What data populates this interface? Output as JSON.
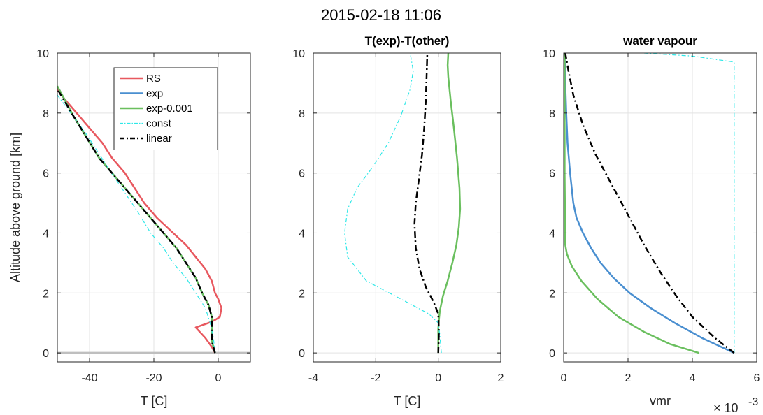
{
  "figure": {
    "suptitle": "2015-02-18 11:06"
  },
  "chart_data": [
    {
      "type": "line",
      "title": "",
      "xlabel": "T [C]",
      "ylabel": "Altitude above ground [km]",
      "xlim": [
        -50,
        10
      ],
      "ylim": [
        -0.3,
        10
      ],
      "xticks": [
        -40,
        -20,
        0
      ],
      "yticks": [
        0,
        2,
        4,
        6,
        8,
        10
      ],
      "grid": true,
      "legend_position": "top-right",
      "reference_line": {
        "y": 0,
        "color": "#bfbfbf"
      },
      "series": [
        {
          "name": "RS",
          "color": "#e8585f",
          "dash": "solid",
          "width": 2.5,
          "x": [
            -1,
            -2,
            -4,
            -7,
            -3,
            -1,
            0.5,
            1,
            0,
            -1,
            -2,
            -4,
            -7,
            -10,
            -14,
            -19,
            -23,
            -26,
            -29,
            -33,
            -36,
            -40,
            -44,
            -48,
            -50
          ],
          "y": [
            0,
            0.2,
            0.5,
            0.85,
            1,
            1.1,
            1.2,
            1.5,
            1.8,
            2.0,
            2.4,
            2.8,
            3.2,
            3.6,
            4.0,
            4.5,
            5.0,
            5.5,
            6.0,
            6.5,
            7.0,
            7.5,
            8.0,
            8.5,
            8.8
          ]
        },
        {
          "name": "exp",
          "color": "#4a8fd0",
          "dash": "solid",
          "width": 2.5,
          "x": [
            -1,
            -2,
            -2,
            -2,
            -3,
            -5,
            -7,
            -10,
            -13,
            -17,
            -21,
            -25,
            -29,
            -33,
            -37,
            -41,
            -45,
            -49.5
          ],
          "y": [
            0,
            0.4,
            0.8,
            1.2,
            1.6,
            2.0,
            2.5,
            3.0,
            3.5,
            4.0,
            4.5,
            5.0,
            5.5,
            6.0,
            6.5,
            7.2,
            7.9,
            8.8
          ]
        },
        {
          "name": "exp-0.001",
          "color": "#6abf5e",
          "dash": "solid",
          "width": 2.5,
          "x": [
            -1,
            -2,
            -2,
            -2,
            -3,
            -5,
            -7,
            -10,
            -13,
            -17,
            -21,
            -25,
            -29,
            -33,
            -37,
            -41,
            -45,
            -50
          ],
          "y": [
            0,
            0.4,
            0.8,
            1.2,
            1.6,
            2.0,
            2.5,
            3.0,
            3.5,
            4.0,
            4.5,
            5.0,
            5.5,
            6.0,
            6.5,
            7.2,
            7.9,
            8.9
          ]
        },
        {
          "name": "const",
          "color": "#2ee8e8",
          "dash": "dashdot",
          "width": 1.2,
          "x": [
            -1,
            -1.5,
            -2.5,
            -4,
            -7,
            -10,
            -14,
            -17,
            -21,
            -25,
            -30,
            -35,
            -41,
            -50
          ],
          "y": [
            0,
            0.5,
            1.0,
            1.5,
            2.0,
            2.5,
            3.0,
            3.5,
            4.0,
            4.7,
            5.5,
            6.3,
            7.3,
            8.6
          ]
        },
        {
          "name": "linear",
          "color": "#000000",
          "dash": "dashdot",
          "width": 2.5,
          "x": [
            -1,
            -2,
            -2,
            -2,
            -3,
            -5,
            -7,
            -10,
            -13,
            -17,
            -21,
            -25,
            -29,
            -33,
            -37,
            -41,
            -45,
            -50
          ],
          "y": [
            0,
            0.4,
            0.8,
            1.2,
            1.6,
            2.0,
            2.5,
            3.0,
            3.5,
            4.0,
            4.5,
            5.0,
            5.5,
            6.0,
            6.5,
            7.2,
            7.9,
            8.8
          ]
        }
      ]
    },
    {
      "type": "line",
      "title": "T(exp)-T(other)",
      "xlabel": "T [C]",
      "ylabel": "",
      "xlim": [
        -4,
        2
      ],
      "ylim": [
        -0.3,
        10
      ],
      "xticks": [
        -4,
        -2,
        0,
        2
      ],
      "yticks": [
        0,
        2,
        4,
        6,
        8,
        10
      ],
      "grid": true,
      "series": [
        {
          "name": "exp-0.001",
          "color": "#6abf5e",
          "dash": "solid",
          "width": 2.5,
          "x": [
            0,
            0,
            0.02,
            0.05,
            0.15,
            0.3,
            0.45,
            0.58,
            0.66,
            0.7,
            0.68,
            0.6,
            0.5,
            0.4,
            0.32,
            0.3,
            0.32
          ],
          "y": [
            0,
            0.8,
            1.1,
            1.4,
            1.9,
            2.4,
            3.0,
            3.6,
            4.2,
            4.8,
            5.5,
            6.5,
            7.5,
            8.4,
            9.2,
            9.6,
            10
          ]
        },
        {
          "name": "const",
          "color": "#2ee8e8",
          "dash": "dashdot",
          "width": 1.2,
          "x": [
            0.1,
            0.05,
            0,
            -0.3,
            -1.2,
            -2.3,
            -2.9,
            -3.0,
            -2.9,
            -2.6,
            -2.1,
            -1.6,
            -1.2,
            -0.9,
            -0.8,
            -0.9
          ],
          "y": [
            0,
            0.6,
            1.0,
            1.3,
            1.8,
            2.4,
            3.2,
            4.0,
            4.8,
            5.5,
            6.2,
            7.0,
            7.9,
            8.8,
            9.4,
            10
          ]
        },
        {
          "name": "linear",
          "color": "#000000",
          "dash": "dashdot",
          "width": 2.5,
          "x": [
            0,
            0.02,
            0,
            -0.15,
            -0.4,
            -0.6,
            -0.72,
            -0.76,
            -0.72,
            -0.62,
            -0.52,
            -0.45,
            -0.4,
            -0.37,
            -0.35
          ],
          "y": [
            0,
            0.7,
            1.3,
            1.7,
            2.2,
            2.8,
            3.5,
            4.3,
            5.0,
            5.8,
            6.6,
            7.5,
            8.4,
            9.3,
            10
          ]
        }
      ]
    },
    {
      "type": "line",
      "title": "water vapour",
      "xlabel": "vmr",
      "ylabel": "",
      "x_exponent_label": "× 10",
      "x_exponent": "-3",
      "xlim": [
        0,
        6
      ],
      "ylim": [
        -0.3,
        10
      ],
      "xticks": [
        0,
        2,
        4,
        6
      ],
      "yticks": [
        0,
        2,
        4,
        6,
        8,
        10
      ],
      "grid": true,
      "series": [
        {
          "name": "exp",
          "color": "#4a8fd0",
          "dash": "solid",
          "width": 2.5,
          "x": [
            5.3,
            4.3,
            3.45,
            2.7,
            2.05,
            1.55,
            1.15,
            0.85,
            0.6,
            0.4,
            0.3,
            0.2,
            0.12,
            0.08,
            0.05,
            0.03
          ],
          "y": [
            0,
            0.5,
            1.0,
            1.5,
            2.0,
            2.5,
            3.0,
            3.5,
            4.0,
            4.5,
            5.0,
            6.0,
            7.0,
            8.0,
            9.0,
            10
          ]
        },
        {
          "name": "exp-0.001",
          "color": "#6abf5e",
          "dash": "solid",
          "width": 2.5,
          "x": [
            4.2,
            3.3,
            2.5,
            1.7,
            1.05,
            0.55,
            0.25,
            0.1,
            0.05,
            0.03,
            0.03
          ],
          "y": [
            0,
            0.3,
            0.7,
            1.2,
            1.8,
            2.4,
            2.9,
            3.3,
            3.6,
            6.0,
            10
          ]
        },
        {
          "name": "const",
          "color": "#2ee8e8",
          "dash": "dashdot",
          "width": 1.2,
          "x": [
            5.3,
            5.3,
            5.3,
            4.0,
            2.5
          ],
          "y": [
            0,
            5,
            9.7,
            9.9,
            10
          ]
        },
        {
          "name": "linear",
          "color": "#000000",
          "dash": "dashdot",
          "width": 2.5,
          "x": [
            5.3,
            4.7,
            4.0,
            3.5,
            3.0,
            2.5,
            2.0,
            1.5,
            1.0,
            0.6,
            0.3,
            0.15,
            0.05
          ],
          "y": [
            0,
            0.5,
            1.2,
            1.9,
            2.7,
            3.6,
            4.6,
            5.6,
            6.6,
            7.6,
            8.6,
            9.4,
            10
          ]
        }
      ]
    }
  ]
}
